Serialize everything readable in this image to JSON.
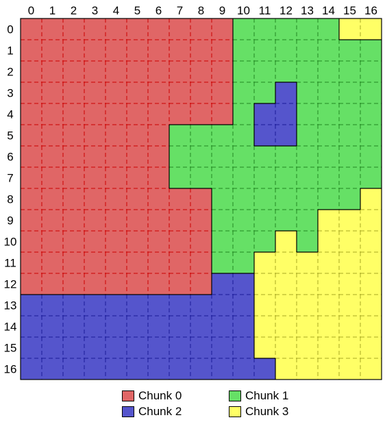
{
  "grid": {
    "rows": 17,
    "cols": 17,
    "x_labels": [
      "0",
      "1",
      "2",
      "3",
      "4",
      "5",
      "6",
      "7",
      "8",
      "9",
      "10",
      "11",
      "12",
      "13",
      "14",
      "15",
      "16"
    ],
    "y_labels": [
      "0",
      "1",
      "2",
      "3",
      "4",
      "5",
      "6",
      "7",
      "8",
      "9",
      "10",
      "11",
      "12",
      "13",
      "14",
      "15",
      "16"
    ],
    "chunk_rows": [
      "00000000001111133",
      "00000000001111111",
      "00000000001111111",
      "00000000001121111",
      "00000000001221111",
      "00000001111221111",
      "00000001111111111",
      "00000001111111111",
      "00000000011111113",
      "00000000011111333",
      "00000000011131333",
      "00000000011333333",
      "00000000022333333",
      "22222222222333333",
      "22222222222333333",
      "22222222222333333",
      "22222222222233333"
    ]
  },
  "chunks": [
    {
      "id": 0,
      "label": "Chunk 0",
      "color": "#e06666",
      "line": "#cc0000"
    },
    {
      "id": 1,
      "label": "Chunk 1",
      "color": "#66e066",
      "line": "#228822"
    },
    {
      "id": 2,
      "label": "Chunk 2",
      "color": "#5555cc",
      "line": "#1a1a99"
    },
    {
      "id": 3,
      "label": "Chunk 3",
      "color": "#ffff66",
      "line": "#aaaa22"
    }
  ],
  "legend": {
    "chunk0": "Chunk 0",
    "chunk1": "Chunk 1",
    "chunk2": "Chunk 2",
    "chunk3": "Chunk 3"
  }
}
